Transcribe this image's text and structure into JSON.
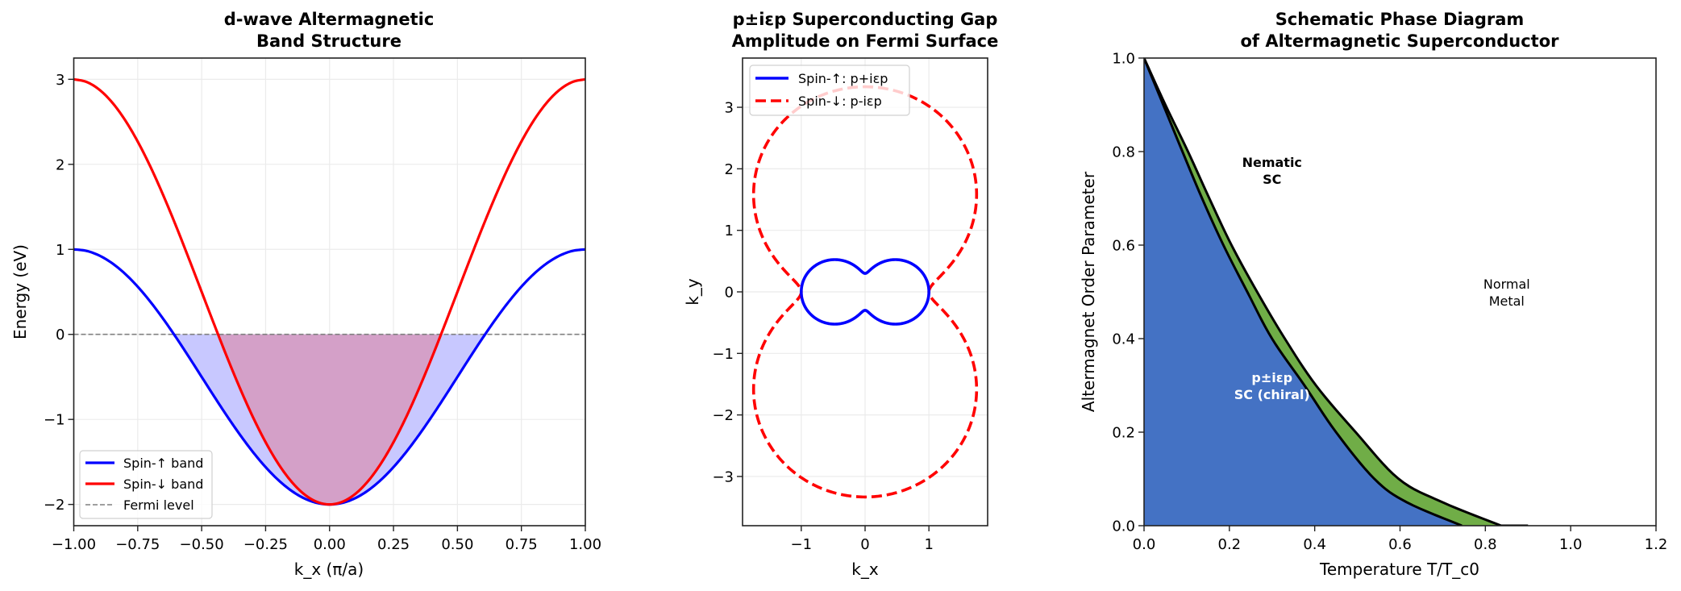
{
  "chart_data": [
    {
      "type": "line",
      "title": [
        "d-wave Altermagnetic",
        "Band Structure"
      ],
      "xlabel": "k_x (π/a)",
      "ylabel": "Energy (eV)",
      "xlim": [
        -1,
        1
      ],
      "ylim": [
        -2.25,
        3.25
      ],
      "grid": true,
      "xticks": [
        "−1.00",
        "−0.75",
        "−0.50",
        "−0.25",
        "0.00",
        "0.25",
        "0.50",
        "0.75",
        "1.00"
      ],
      "xtick_values": [
        -1,
        -0.75,
        -0.5,
        -0.25,
        0,
        0.25,
        0.5,
        0.75,
        1
      ],
      "yticks": [
        "−2",
        "−1",
        "0",
        "1",
        "2",
        "3"
      ],
      "ytick_values": [
        -2,
        -1,
        0,
        1,
        2,
        3
      ],
      "legend_placement": "lower-left",
      "x": [
        -1,
        -0.95,
        -0.9,
        -0.85,
        -0.8,
        -0.75,
        -0.7,
        -0.65,
        -0.6,
        -0.55,
        -0.5,
        -0.45,
        -0.4,
        -0.35,
        -0.3,
        -0.25,
        -0.2,
        -0.15,
        -0.1,
        -0.05,
        0,
        0.05,
        0.1,
        0.15,
        0.2,
        0.25,
        0.3,
        0.35,
        0.4,
        0.45,
        0.5,
        0.55,
        0.6,
        0.65,
        0.7,
        0.75,
        0.8,
        0.85,
        0.9,
        0.95,
        1
      ],
      "series": [
        {
          "name": "Spin-↑ band",
          "color": "#0000ff",
          "style": "solid",
          "fill_below_fermi": "#c8c8ff",
          "values": [
            1,
            0.982,
            0.927,
            0.837,
            0.714,
            0.561,
            0.382,
            0.181,
            -0.036,
            -0.265,
            -0.5,
            -0.735,
            -0.964,
            -1.181,
            -1.382,
            -1.561,
            -1.714,
            -1.837,
            -1.927,
            -1.982,
            -2,
            -1.982,
            -1.927,
            -1.837,
            -1.714,
            -1.561,
            -1.382,
            -1.181,
            -0.964,
            -0.735,
            -0.5,
            -0.265,
            -0.036,
            0.181,
            0.382,
            0.561,
            0.714,
            0.837,
            0.927,
            0.982,
            1
          ]
        },
        {
          "name": "Spin-↓ band",
          "color": "#ff0000",
          "style": "solid",
          "fill_below_fermi": "#d4a0c8",
          "values": [
            3,
            2.969,
            2.878,
            2.728,
            2.523,
            2.268,
            1.97,
            1.635,
            1.273,
            0.891,
            0.5,
            0.109,
            -0.273,
            -0.635,
            -0.97,
            -1.268,
            -1.523,
            -1.728,
            -1.878,
            -1.969,
            -2,
            -1.969,
            -1.878,
            -1.728,
            -1.523,
            -1.268,
            -0.97,
            -0.635,
            -0.273,
            0.109,
            0.5,
            0.891,
            1.273,
            1.635,
            1.97,
            2.268,
            2.523,
            2.728,
            2.878,
            2.969,
            3
          ]
        },
        {
          "name": "Fermi level",
          "color": "#808080",
          "style": "dashed",
          "y_constant": 0
        }
      ]
    },
    {
      "type": "line",
      "title": [
        "p±iεp Superconducting Gap",
        "Amplitude on Fermi Surface"
      ],
      "xlabel": "k_x",
      "ylabel": "k_y",
      "xlim": [
        -1.92,
        1.92
      ],
      "ylim": [
        -3.8,
        3.8
      ],
      "grid": true,
      "xticks": [
        "−1",
        "0",
        "1"
      ],
      "xtick_values": [
        -1,
        0,
        1
      ],
      "yticks": [
        "−3",
        "−2",
        "−1",
        "0",
        "1",
        "2",
        "3"
      ],
      "ytick_values": [
        -3,
        -2,
        -1,
        0,
        1,
        2,
        3
      ],
      "legend_placement": "upper-left",
      "epsilon": 0.3,
      "series": [
        {
          "name": "Spin-↑: p+iεp",
          "color": "#0000ff",
          "style": "solid",
          "radius": "sqrt(cos²θ + ε² sin²θ)"
        },
        {
          "name": "Spin-↓: p-iεp",
          "color": "#ff0000",
          "style": "dashed",
          "radius": "sqrt(cos²θ + sin²θ / ε²)"
        }
      ]
    },
    {
      "type": "area",
      "title": [
        "Schematic Phase Diagram",
        "of Altermagnetic Superconductor"
      ],
      "xlabel": "Temperature T/T_c0",
      "ylabel": "Altermagnet Order Parameter",
      "xlim": [
        0,
        1.2
      ],
      "ylim": [
        0,
        1
      ],
      "grid": false,
      "xticks": [
        "0.0",
        "0.2",
        "0.4",
        "0.6",
        "0.8",
        "1.0",
        "1.2"
      ],
      "xtick_values": [
        0,
        0.2,
        0.4,
        0.6,
        0.8,
        1.0,
        1.2
      ],
      "yticks": [
        "0.0",
        "0.2",
        "0.4",
        "0.6",
        "0.8",
        "1.0"
      ],
      "ytick_values": [
        0,
        0.2,
        0.4,
        0.6,
        0.8,
        1.0
      ],
      "regions": [
        {
          "name": "p±iεp SC (chiral)",
          "color": "#4472c4"
        },
        {
          "name": "Nematic SC",
          "color": "#70ad47"
        },
        {
          "name": "Normal Metal",
          "color": "#ffffff"
        }
      ],
      "boundaries": {
        "chiral_nematic": [
          [
            0,
            1
          ],
          [
            0.045,
            0.9
          ],
          [
            0.09,
            0.8
          ],
          [
            0.136,
            0.7
          ],
          [
            0.186,
            0.6
          ],
          [
            0.242,
            0.5
          ],
          [
            0.3,
            0.4
          ],
          [
            0.376,
            0.3
          ],
          [
            0.45,
            0.2
          ],
          [
            0.54,
            0.1
          ],
          [
            0.616,
            0.05
          ],
          [
            0.745,
            0
          ]
        ],
        "nematic_normal": [
          [
            0,
            1
          ],
          [
            0.05,
            0.9
          ],
          [
            0.103,
            0.8
          ],
          [
            0.153,
            0.7
          ],
          [
            0.205,
            0.6
          ],
          [
            0.265,
            0.5
          ],
          [
            0.33,
            0.4
          ],
          [
            0.403,
            0.3
          ],
          [
            0.496,
            0.2
          ],
          [
            0.597,
            0.1
          ],
          [
            0.7,
            0.05
          ],
          [
            0.837,
            0
          ],
          [
            0.9,
            0
          ]
        ]
      },
      "annotations": [
        {
          "lines": [
            "Nematic",
            "SC"
          ],
          "T": 0.3,
          "y": 0.76,
          "bold": true,
          "color": "#000000"
        },
        {
          "lines": [
            "Normal",
            "Metal"
          ],
          "T": 0.85,
          "y": 0.5,
          "bold": false,
          "color": "#000000"
        },
        {
          "lines": [
            "p±iεp",
            "SC (chiral)"
          ],
          "T": 0.3,
          "y": 0.3,
          "bold": true,
          "color": "#ffffff"
        }
      ]
    }
  ]
}
